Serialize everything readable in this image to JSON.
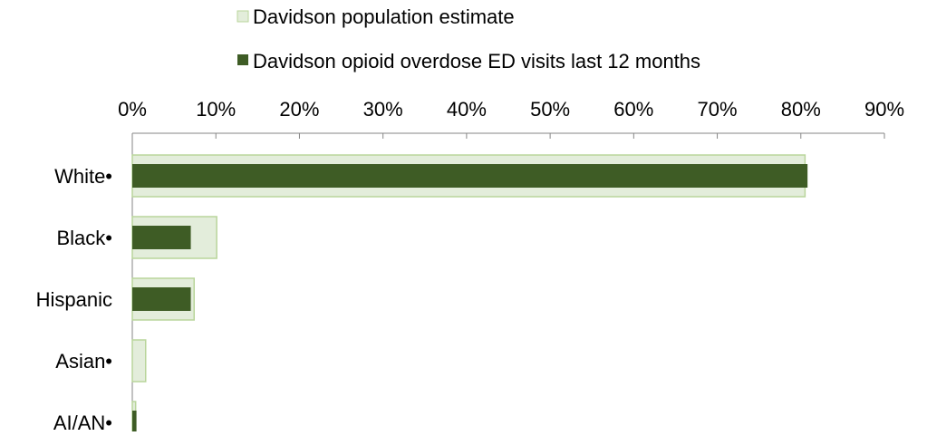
{
  "chart_data": {
    "type": "bar",
    "orientation": "horizontal",
    "categories": [
      "White•",
      "Black•",
      "Hispanic",
      "Asian•",
      "AI/AN•"
    ],
    "series": [
      {
        "name": "Davidson population estimate",
        "color": "#e3eddb",
        "border": "#b9d59b",
        "values": [
          80.5,
          10.1,
          7.4,
          1.6,
          0.4
        ]
      },
      {
        "name": "Davidson opioid overdose ED visits last 12 months",
        "color": "#3e5c25",
        "values": [
          80.8,
          7.0,
          7.0,
          0,
          0.5
        ]
      }
    ],
    "xlim": [
      0,
      90
    ],
    "x_tick_step": 10,
    "x_tick_labels": [
      "0%",
      "10%",
      "20%",
      "30%",
      "40%",
      "50%",
      "60%",
      "70%",
      "80%",
      "90%"
    ],
    "x_axis_position": "top",
    "legend_position": "top",
    "grid": false,
    "title": "",
    "xlabel": "",
    "ylabel": ""
  }
}
